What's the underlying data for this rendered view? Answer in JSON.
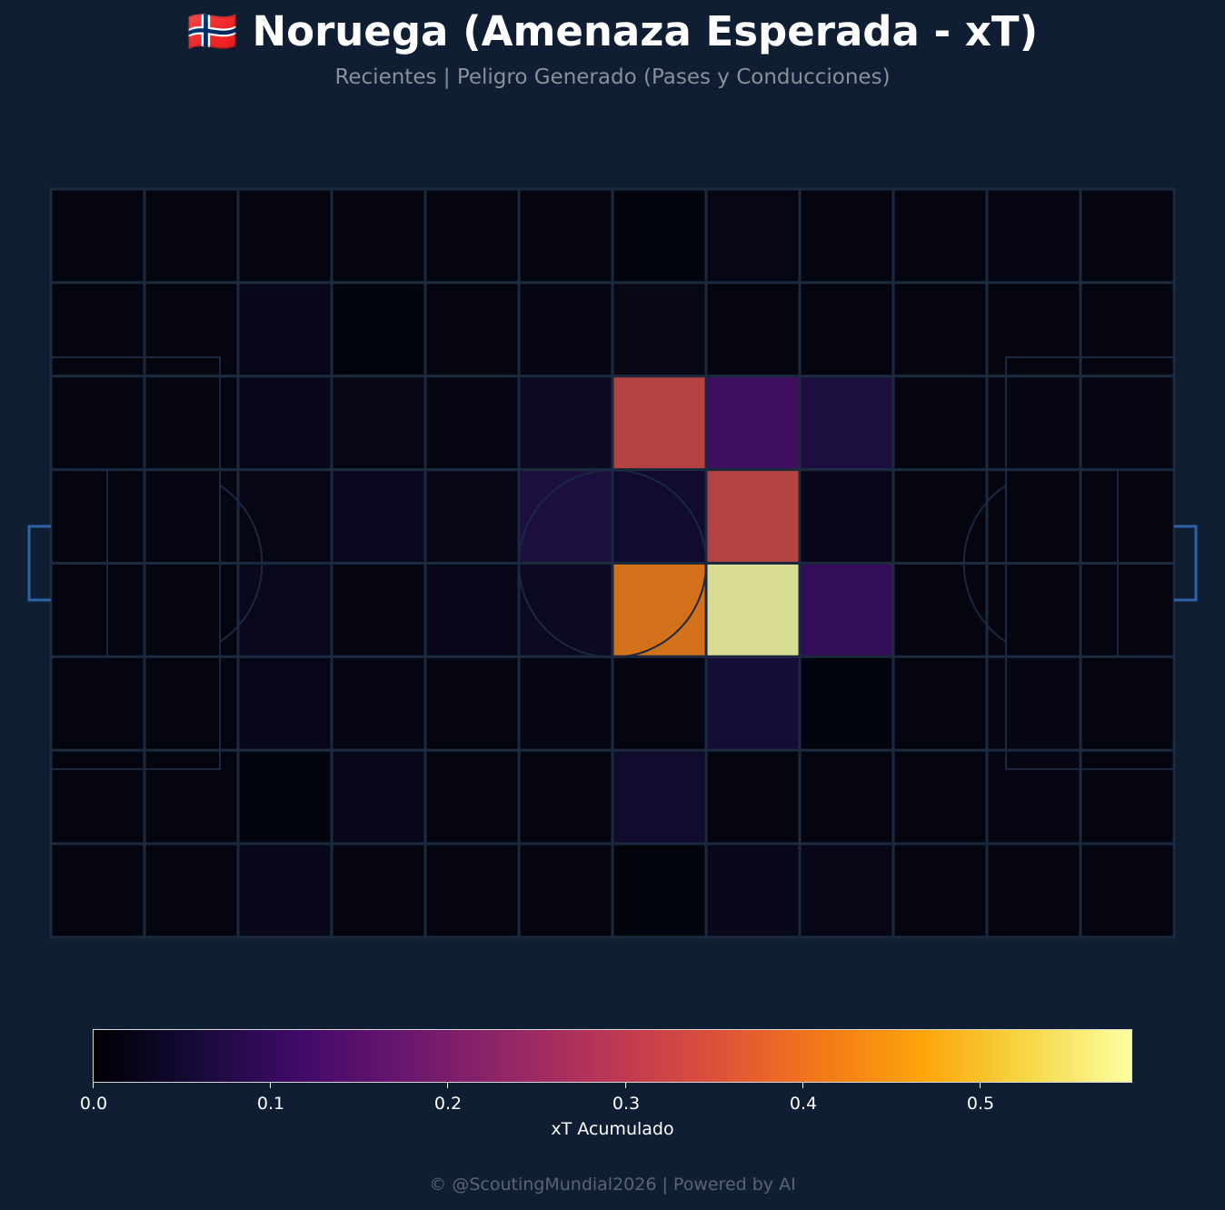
{
  "header": {
    "title": "🇳🇴 Noruega (Amenaza Esperada - xT)",
    "subtitle": "Recientes | Peligro Generado (Pases y Conducciones)"
  },
  "colorbar": {
    "label": "xT Acumulado",
    "ticks": [
      "0.0",
      "0.1",
      "0.2",
      "0.3",
      "0.4",
      "0.5"
    ],
    "tick_values": [
      0.0,
      0.1,
      0.2,
      0.3,
      0.4,
      0.5
    ],
    "range": [
      0,
      0.585
    ],
    "colormap": "inferno"
  },
  "footer": {
    "credit": "© @ScoutingMundial2026 | Powered by AI"
  },
  "colors": {
    "background": "#0f1e33",
    "grid_lines": "#1c2a3f",
    "pitch_lines": "#1b2840",
    "goal": "#2e63a8"
  },
  "chart_data": {
    "type": "heatmap",
    "title": "🇳🇴 Noruega (Amenaza Esperada - xT)",
    "subtitle": "Recientes | Peligro Generado (Pases y Conducciones)",
    "colorbar_label": "xT Acumulado",
    "vmin": 0,
    "vmax": 0.585,
    "columns": 12,
    "rows": 8,
    "grid": [
      [
        0.005,
        0.007,
        0.006,
        0.006,
        0.006,
        0.005,
        0.003,
        0.012,
        0.005,
        0.004,
        0.008,
        0.006
      ],
      [
        0.004,
        0.006,
        0.018,
        0.003,
        0.004,
        0.01,
        0.014,
        0.004,
        0.004,
        0.004,
        0.006,
        0.007
      ],
      [
        0.006,
        0.007,
        0.02,
        0.012,
        0.008,
        0.035,
        0.33,
        0.125,
        0.07,
        0.005,
        0.008,
        0.008
      ],
      [
        0.006,
        0.008,
        0.012,
        0.025,
        0.015,
        0.07,
        0.045,
        0.33,
        0.018,
        0.006,
        0.007,
        0.006
      ],
      [
        0.005,
        0.007,
        0.022,
        0.004,
        0.018,
        0.03,
        0.42,
        0.585,
        0.105,
        0.004,
        0.006,
        0.006
      ],
      [
        0.005,
        0.007,
        0.018,
        0.008,
        0.004,
        0.01,
        0.004,
        0.055,
        0.003,
        0.005,
        0.008,
        0.007
      ],
      [
        0.004,
        0.006,
        0.003,
        0.02,
        0.006,
        0.006,
        0.045,
        0.005,
        0.005,
        0.005,
        0.008,
        0.006
      ],
      [
        0.005,
        0.007,
        0.02,
        0.004,
        0.005,
        0.006,
        0.002,
        0.02,
        0.015,
        0.004,
        0.006,
        0.006
      ]
    ]
  }
}
